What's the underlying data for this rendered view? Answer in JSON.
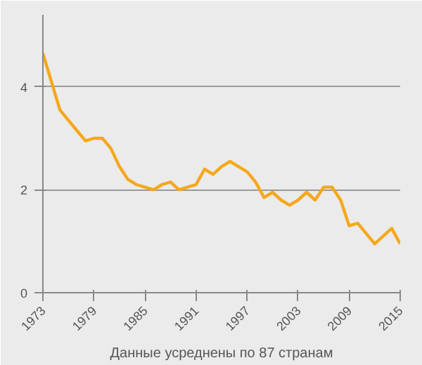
{
  "chart_data": {
    "type": "line",
    "xlabel": "Данные усреднены по 87 странам",
    "x": [
      1973,
      1974,
      1975,
      1976,
      1977,
      1978,
      1979,
      1980,
      1981,
      1982,
      1983,
      1984,
      1985,
      1986,
      1987,
      1988,
      1989,
      1990,
      1991,
      1992,
      1993,
      1994,
      1995,
      1996,
      1997,
      1998,
      1999,
      2000,
      2001,
      2002,
      2003,
      2004,
      2005,
      2006,
      2007,
      2008,
      2009,
      2010,
      2011,
      2012,
      2013,
      2014,
      2015
    ],
    "series": [
      {
        "color": "#f5a81c",
        "values": [
          4.65,
          4.1,
          3.55,
          3.35,
          3.15,
          2.95,
          3.0,
          3.0,
          2.8,
          2.45,
          2.2,
          2.1,
          2.05,
          2.0,
          2.1,
          2.15,
          2.0,
          2.05,
          2.1,
          2.4,
          2.3,
          2.45,
          2.55,
          2.45,
          2.35,
          2.15,
          1.85,
          1.95,
          1.8,
          1.7,
          1.8,
          1.95,
          1.8,
          2.05,
          2.05,
          1.8,
          1.3,
          1.35,
          1.15,
          0.95,
          1.1,
          1.25,
          0.95
        ]
      }
    ],
    "xlim": [
      1973,
      2015
    ],
    "ylim": [
      0,
      5.4
    ],
    "xticks": [
      1973,
      1979,
      1985,
      1991,
      1997,
      2003,
      2009,
      2015
    ],
    "yticks": [
      0,
      2,
      4
    ],
    "grid": "y",
    "marker": "none",
    "line_style": "solid"
  }
}
